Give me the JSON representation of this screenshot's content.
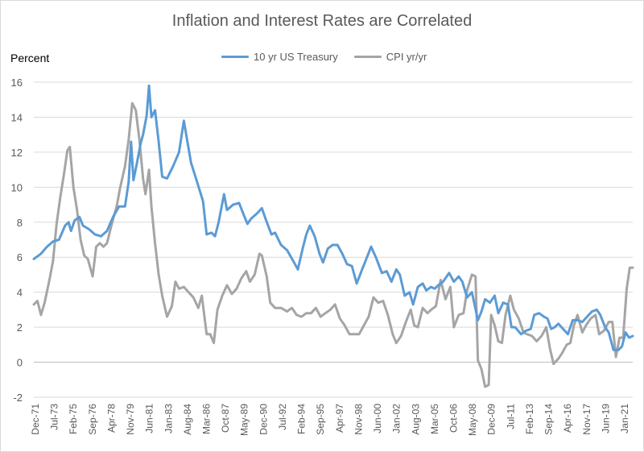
{
  "chart_data": {
    "type": "line",
    "title": "Inflation and Interest Rates are Correlated",
    "ylabel": "Percent",
    "ylim": [
      -2,
      16
    ],
    "yticks": [
      -2,
      0,
      2,
      4,
      6,
      8,
      10,
      12,
      14,
      16
    ],
    "x_tick_labels": [
      "Dec-71",
      "Jul-73",
      "Feb-75",
      "Sep-76",
      "Apr-78",
      "Nov-79",
      "Jun-81",
      "Jan-83",
      "Aug-84",
      "Mar-86",
      "Oct-87",
      "May-89",
      "Dec-90",
      "Jul-92",
      "Feb-94",
      "Sep-95",
      "Apr-97",
      "Nov-98",
      "Jun-00",
      "Jan-02",
      "Aug-03",
      "Mar-05",
      "Oct-06",
      "May-08",
      "Dec-09",
      "Jul-11",
      "Feb-13",
      "Sep-14",
      "Apr-16",
      "Nov-17",
      "Jun-19",
      "Jan-21"
    ],
    "grid": true,
    "legend_position": "top",
    "series": [
      {
        "name": "10 yr US Treasury",
        "color": "#5B9BD5",
        "points": [
          [
            1971.9,
            5.9
          ],
          [
            1972.5,
            6.2
          ],
          [
            1973.0,
            6.6
          ],
          [
            1973.5,
            6.9
          ],
          [
            1974.0,
            7.0
          ],
          [
            1974.5,
            7.8
          ],
          [
            1974.8,
            8.0
          ],
          [
            1975.0,
            7.5
          ],
          [
            1975.3,
            8.1
          ],
          [
            1975.7,
            8.3
          ],
          [
            1976.0,
            7.8
          ],
          [
            1976.5,
            7.6
          ],
          [
            1977.0,
            7.3
          ],
          [
            1977.5,
            7.2
          ],
          [
            1978.0,
            7.5
          ],
          [
            1978.5,
            8.3
          ],
          [
            1979.0,
            8.9
          ],
          [
            1979.5,
            8.9
          ],
          [
            1979.8,
            10.3
          ],
          [
            1980.0,
            12.6
          ],
          [
            1980.2,
            10.4
          ],
          [
            1980.5,
            11.4
          ],
          [
            1980.8,
            12.5
          ],
          [
            1981.0,
            13.0
          ],
          [
            1981.3,
            14.1
          ],
          [
            1981.5,
            15.8
          ],
          [
            1981.7,
            14.0
          ],
          [
            1982.0,
            14.4
          ],
          [
            1982.3,
            12.6
          ],
          [
            1982.6,
            10.6
          ],
          [
            1983.0,
            10.5
          ],
          [
            1983.5,
            11.2
          ],
          [
            1984.0,
            12.0
          ],
          [
            1984.4,
            13.8
          ],
          [
            1984.7,
            12.6
          ],
          [
            1985.0,
            11.4
          ],
          [
            1985.5,
            10.3
          ],
          [
            1986.0,
            9.2
          ],
          [
            1986.3,
            7.3
          ],
          [
            1986.7,
            7.4
          ],
          [
            1987.0,
            7.2
          ],
          [
            1987.3,
            8.0
          ],
          [
            1987.75,
            9.6
          ],
          [
            1988.0,
            8.7
          ],
          [
            1988.5,
            9.0
          ],
          [
            1989.0,
            9.1
          ],
          [
            1989.4,
            8.4
          ],
          [
            1989.7,
            7.9
          ],
          [
            1990.0,
            8.2
          ],
          [
            1990.5,
            8.5
          ],
          [
            1990.9,
            8.8
          ],
          [
            1991.2,
            8.2
          ],
          [
            1991.7,
            7.3
          ],
          [
            1992.0,
            7.4
          ],
          [
            1992.5,
            6.7
          ],
          [
            1993.0,
            6.4
          ],
          [
            1993.5,
            5.8
          ],
          [
            1993.9,
            5.3
          ],
          [
            1994.3,
            6.5
          ],
          [
            1994.6,
            7.3
          ],
          [
            1994.9,
            7.8
          ],
          [
            1995.3,
            7.2
          ],
          [
            1995.7,
            6.2
          ],
          [
            1996.0,
            5.7
          ],
          [
            1996.4,
            6.5
          ],
          [
            1996.8,
            6.7
          ],
          [
            1997.2,
            6.7
          ],
          [
            1997.6,
            6.2
          ],
          [
            1998.0,
            5.6
          ],
          [
            1998.4,
            5.5
          ],
          [
            1998.8,
            4.5
          ],
          [
            1999.2,
            5.2
          ],
          [
            1999.6,
            5.9
          ],
          [
            2000.0,
            6.6
          ],
          [
            2000.4,
            6.0
          ],
          [
            2000.9,
            5.1
          ],
          [
            2001.3,
            5.2
          ],
          [
            2001.7,
            4.6
          ],
          [
            2002.1,
            5.3
          ],
          [
            2002.4,
            5.0
          ],
          [
            2002.8,
            3.8
          ],
          [
            2003.2,
            4.0
          ],
          [
            2003.5,
            3.3
          ],
          [
            2003.9,
            4.3
          ],
          [
            2004.3,
            4.5
          ],
          [
            2004.6,
            4.1
          ],
          [
            2005.0,
            4.3
          ],
          [
            2005.3,
            4.2
          ],
          [
            2005.6,
            4.4
          ],
          [
            2006.0,
            4.6
          ],
          [
            2006.5,
            5.1
          ],
          [
            2006.9,
            4.6
          ],
          [
            2007.3,
            4.9
          ],
          [
            2007.6,
            4.6
          ],
          [
            2008.0,
            3.7
          ],
          [
            2008.4,
            4.0
          ],
          [
            2008.9,
            2.4
          ],
          [
            2009.2,
            2.9
          ],
          [
            2009.5,
            3.6
          ],
          [
            2009.9,
            3.4
          ],
          [
            2010.3,
            3.8
          ],
          [
            2010.6,
            2.8
          ],
          [
            2011.0,
            3.4
          ],
          [
            2011.4,
            3.3
          ],
          [
            2011.7,
            2.0
          ],
          [
            2012.0,
            2.0
          ],
          [
            2012.5,
            1.6
          ],
          [
            2012.9,
            1.8
          ],
          [
            2013.3,
            1.9
          ],
          [
            2013.6,
            2.7
          ],
          [
            2014.0,
            2.8
          ],
          [
            2014.4,
            2.6
          ],
          [
            2014.7,
            2.5
          ],
          [
            2015.0,
            1.9
          ],
          [
            2015.3,
            2.0
          ],
          [
            2015.6,
            2.2
          ],
          [
            2016.0,
            1.9
          ],
          [
            2016.4,
            1.6
          ],
          [
            2016.8,
            2.4
          ],
          [
            2017.2,
            2.4
          ],
          [
            2017.6,
            2.3
          ],
          [
            2018.0,
            2.6
          ],
          [
            2018.4,
            2.9
          ],
          [
            2018.8,
            3.0
          ],
          [
            2019.1,
            2.7
          ],
          [
            2019.5,
            2.0
          ],
          [
            2019.8,
            1.7
          ],
          [
            2020.2,
            0.7
          ],
          [
            2020.6,
            0.7
          ],
          [
            2020.9,
            0.9
          ],
          [
            2021.2,
            1.7
          ],
          [
            2021.5,
            1.4
          ],
          [
            2021.8,
            1.5
          ]
        ]
      },
      {
        "name": "CPI yr/yr",
        "color": "#A5A5A5",
        "points": [
          [
            1971.9,
            3.3
          ],
          [
            1972.2,
            3.5
          ],
          [
            1972.5,
            2.7
          ],
          [
            1972.8,
            3.4
          ],
          [
            1973.2,
            4.7
          ],
          [
            1973.5,
            5.8
          ],
          [
            1973.8,
            7.9
          ],
          [
            1974.1,
            9.4
          ],
          [
            1974.4,
            10.7
          ],
          [
            1974.7,
            12.1
          ],
          [
            1974.9,
            12.3
          ],
          [
            1975.2,
            10.0
          ],
          [
            1975.5,
            8.7
          ],
          [
            1975.8,
            7.0
          ],
          [
            1976.1,
            6.1
          ],
          [
            1976.4,
            5.9
          ],
          [
            1976.8,
            4.9
          ],
          [
            1977.1,
            6.6
          ],
          [
            1977.4,
            6.8
          ],
          [
            1977.7,
            6.6
          ],
          [
            1978.0,
            6.8
          ],
          [
            1978.4,
            7.9
          ],
          [
            1978.8,
            8.9
          ],
          [
            1979.1,
            10.0
          ],
          [
            1979.5,
            11.2
          ],
          [
            1979.8,
            12.7
          ],
          [
            1980.1,
            14.8
          ],
          [
            1980.4,
            14.4
          ],
          [
            1980.7,
            12.7
          ],
          [
            1981.0,
            10.5
          ],
          [
            1981.2,
            9.6
          ],
          [
            1981.5,
            11.0
          ],
          [
            1981.7,
            8.9
          ],
          [
            1982.0,
            6.8
          ],
          [
            1982.3,
            5.0
          ],
          [
            1982.6,
            3.8
          ],
          [
            1983.0,
            2.6
          ],
          [
            1983.4,
            3.2
          ],
          [
            1983.7,
            4.6
          ],
          [
            1984.0,
            4.2
          ],
          [
            1984.4,
            4.3
          ],
          [
            1984.8,
            4.0
          ],
          [
            1985.2,
            3.7
          ],
          [
            1985.6,
            3.1
          ],
          [
            1985.9,
            3.8
          ],
          [
            1986.3,
            1.6
          ],
          [
            1986.6,
            1.6
          ],
          [
            1986.9,
            1.1
          ],
          [
            1987.2,
            3.0
          ],
          [
            1987.6,
            3.8
          ],
          [
            1988.0,
            4.4
          ],
          [
            1988.4,
            3.9
          ],
          [
            1988.8,
            4.2
          ],
          [
            1989.2,
            4.8
          ],
          [
            1989.6,
            5.2
          ],
          [
            1989.9,
            4.6
          ],
          [
            1990.3,
            5.0
          ],
          [
            1990.7,
            6.2
          ],
          [
            1990.9,
            6.1
          ],
          [
            1991.3,
            4.9
          ],
          [
            1991.6,
            3.4
          ],
          [
            1992.0,
            3.1
          ],
          [
            1992.5,
            3.1
          ],
          [
            1993.0,
            2.9
          ],
          [
            1993.4,
            3.1
          ],
          [
            1993.8,
            2.7
          ],
          [
            1994.2,
            2.6
          ],
          [
            1994.6,
            2.8
          ],
          [
            1995.0,
            2.8
          ],
          [
            1995.4,
            3.1
          ],
          [
            1995.8,
            2.6
          ],
          [
            1996.2,
            2.8
          ],
          [
            1996.6,
            3.0
          ],
          [
            1997.0,
            3.3
          ],
          [
            1997.4,
            2.5
          ],
          [
            1997.8,
            2.1
          ],
          [
            1998.2,
            1.6
          ],
          [
            1998.6,
            1.6
          ],
          [
            1999.0,
            1.6
          ],
          [
            1999.4,
            2.1
          ],
          [
            1999.8,
            2.6
          ],
          [
            2000.2,
            3.7
          ],
          [
            2000.6,
            3.4
          ],
          [
            2001.0,
            3.5
          ],
          [
            2001.4,
            2.7
          ],
          [
            2001.8,
            1.6
          ],
          [
            2002.1,
            1.1
          ],
          [
            2002.5,
            1.5
          ],
          [
            2002.9,
            2.3
          ],
          [
            2003.3,
            3.0
          ],
          [
            2003.6,
            2.1
          ],
          [
            2003.9,
            2.0
          ],
          [
            2004.3,
            3.1
          ],
          [
            2004.7,
            2.8
          ],
          [
            2005.0,
            3.0
          ],
          [
            2005.4,
            3.2
          ],
          [
            2005.8,
            4.7
          ],
          [
            2006.2,
            3.6
          ],
          [
            2006.6,
            4.3
          ],
          [
            2006.9,
            2.0
          ],
          [
            2007.3,
            2.7
          ],
          [
            2007.7,
            2.8
          ],
          [
            2008.0,
            4.1
          ],
          [
            2008.4,
            5.0
          ],
          [
            2008.7,
            4.9
          ],
          [
            2008.9,
            0.1
          ],
          [
            2009.2,
            -0.4
          ],
          [
            2009.5,
            -1.4
          ],
          [
            2009.8,
            -1.3
          ],
          [
            2010.0,
            2.7
          ],
          [
            2010.3,
            2.1
          ],
          [
            2010.6,
            1.2
          ],
          [
            2010.9,
            1.1
          ],
          [
            2011.2,
            2.7
          ],
          [
            2011.6,
            3.8
          ],
          [
            2011.9,
            3.0
          ],
          [
            2012.3,
            2.5
          ],
          [
            2012.7,
            1.7
          ],
          [
            2013.0,
            1.6
          ],
          [
            2013.4,
            1.5
          ],
          [
            2013.8,
            1.2
          ],
          [
            2014.2,
            1.5
          ],
          [
            2014.6,
            2.0
          ],
          [
            2014.9,
            0.8
          ],
          [
            2015.2,
            -0.1
          ],
          [
            2015.6,
            0.2
          ],
          [
            2015.9,
            0.5
          ],
          [
            2016.3,
            1.0
          ],
          [
            2016.6,
            1.1
          ],
          [
            2016.9,
            2.1
          ],
          [
            2017.2,
            2.7
          ],
          [
            2017.6,
            1.7
          ],
          [
            2017.9,
            2.1
          ],
          [
            2018.3,
            2.5
          ],
          [
            2018.7,
            2.7
          ],
          [
            2019.0,
            1.6
          ],
          [
            2019.4,
            1.8
          ],
          [
            2019.8,
            2.3
          ],
          [
            2020.1,
            2.3
          ],
          [
            2020.4,
            0.3
          ],
          [
            2020.7,
            1.4
          ],
          [
            2021.0,
            1.4
          ],
          [
            2021.3,
            4.2
          ],
          [
            2021.55,
            5.4
          ],
          [
            2021.8,
            5.4
          ]
        ]
      }
    ]
  }
}
